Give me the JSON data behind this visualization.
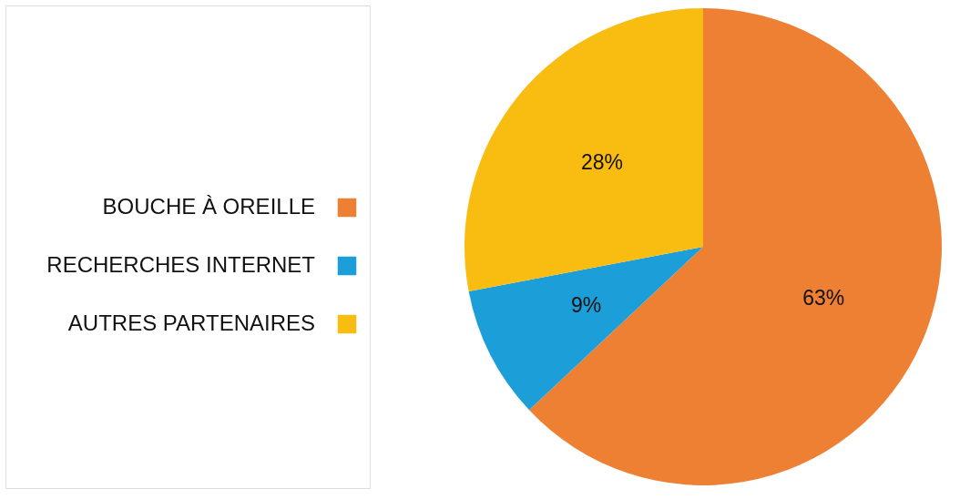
{
  "chart_data": {
    "type": "pie",
    "categories": [
      "BOUCHE À OREILLE",
      "RECHERCHES INTERNET",
      "AUTRES PARTENAIRES"
    ],
    "values": [
      63,
      9,
      28
    ],
    "colors": [
      "#ee8034",
      "#1c9fd9",
      "#f9bd12"
    ],
    "value_labels": [
      "63%",
      "9%",
      "28%"
    ],
    "legend": "left"
  }
}
